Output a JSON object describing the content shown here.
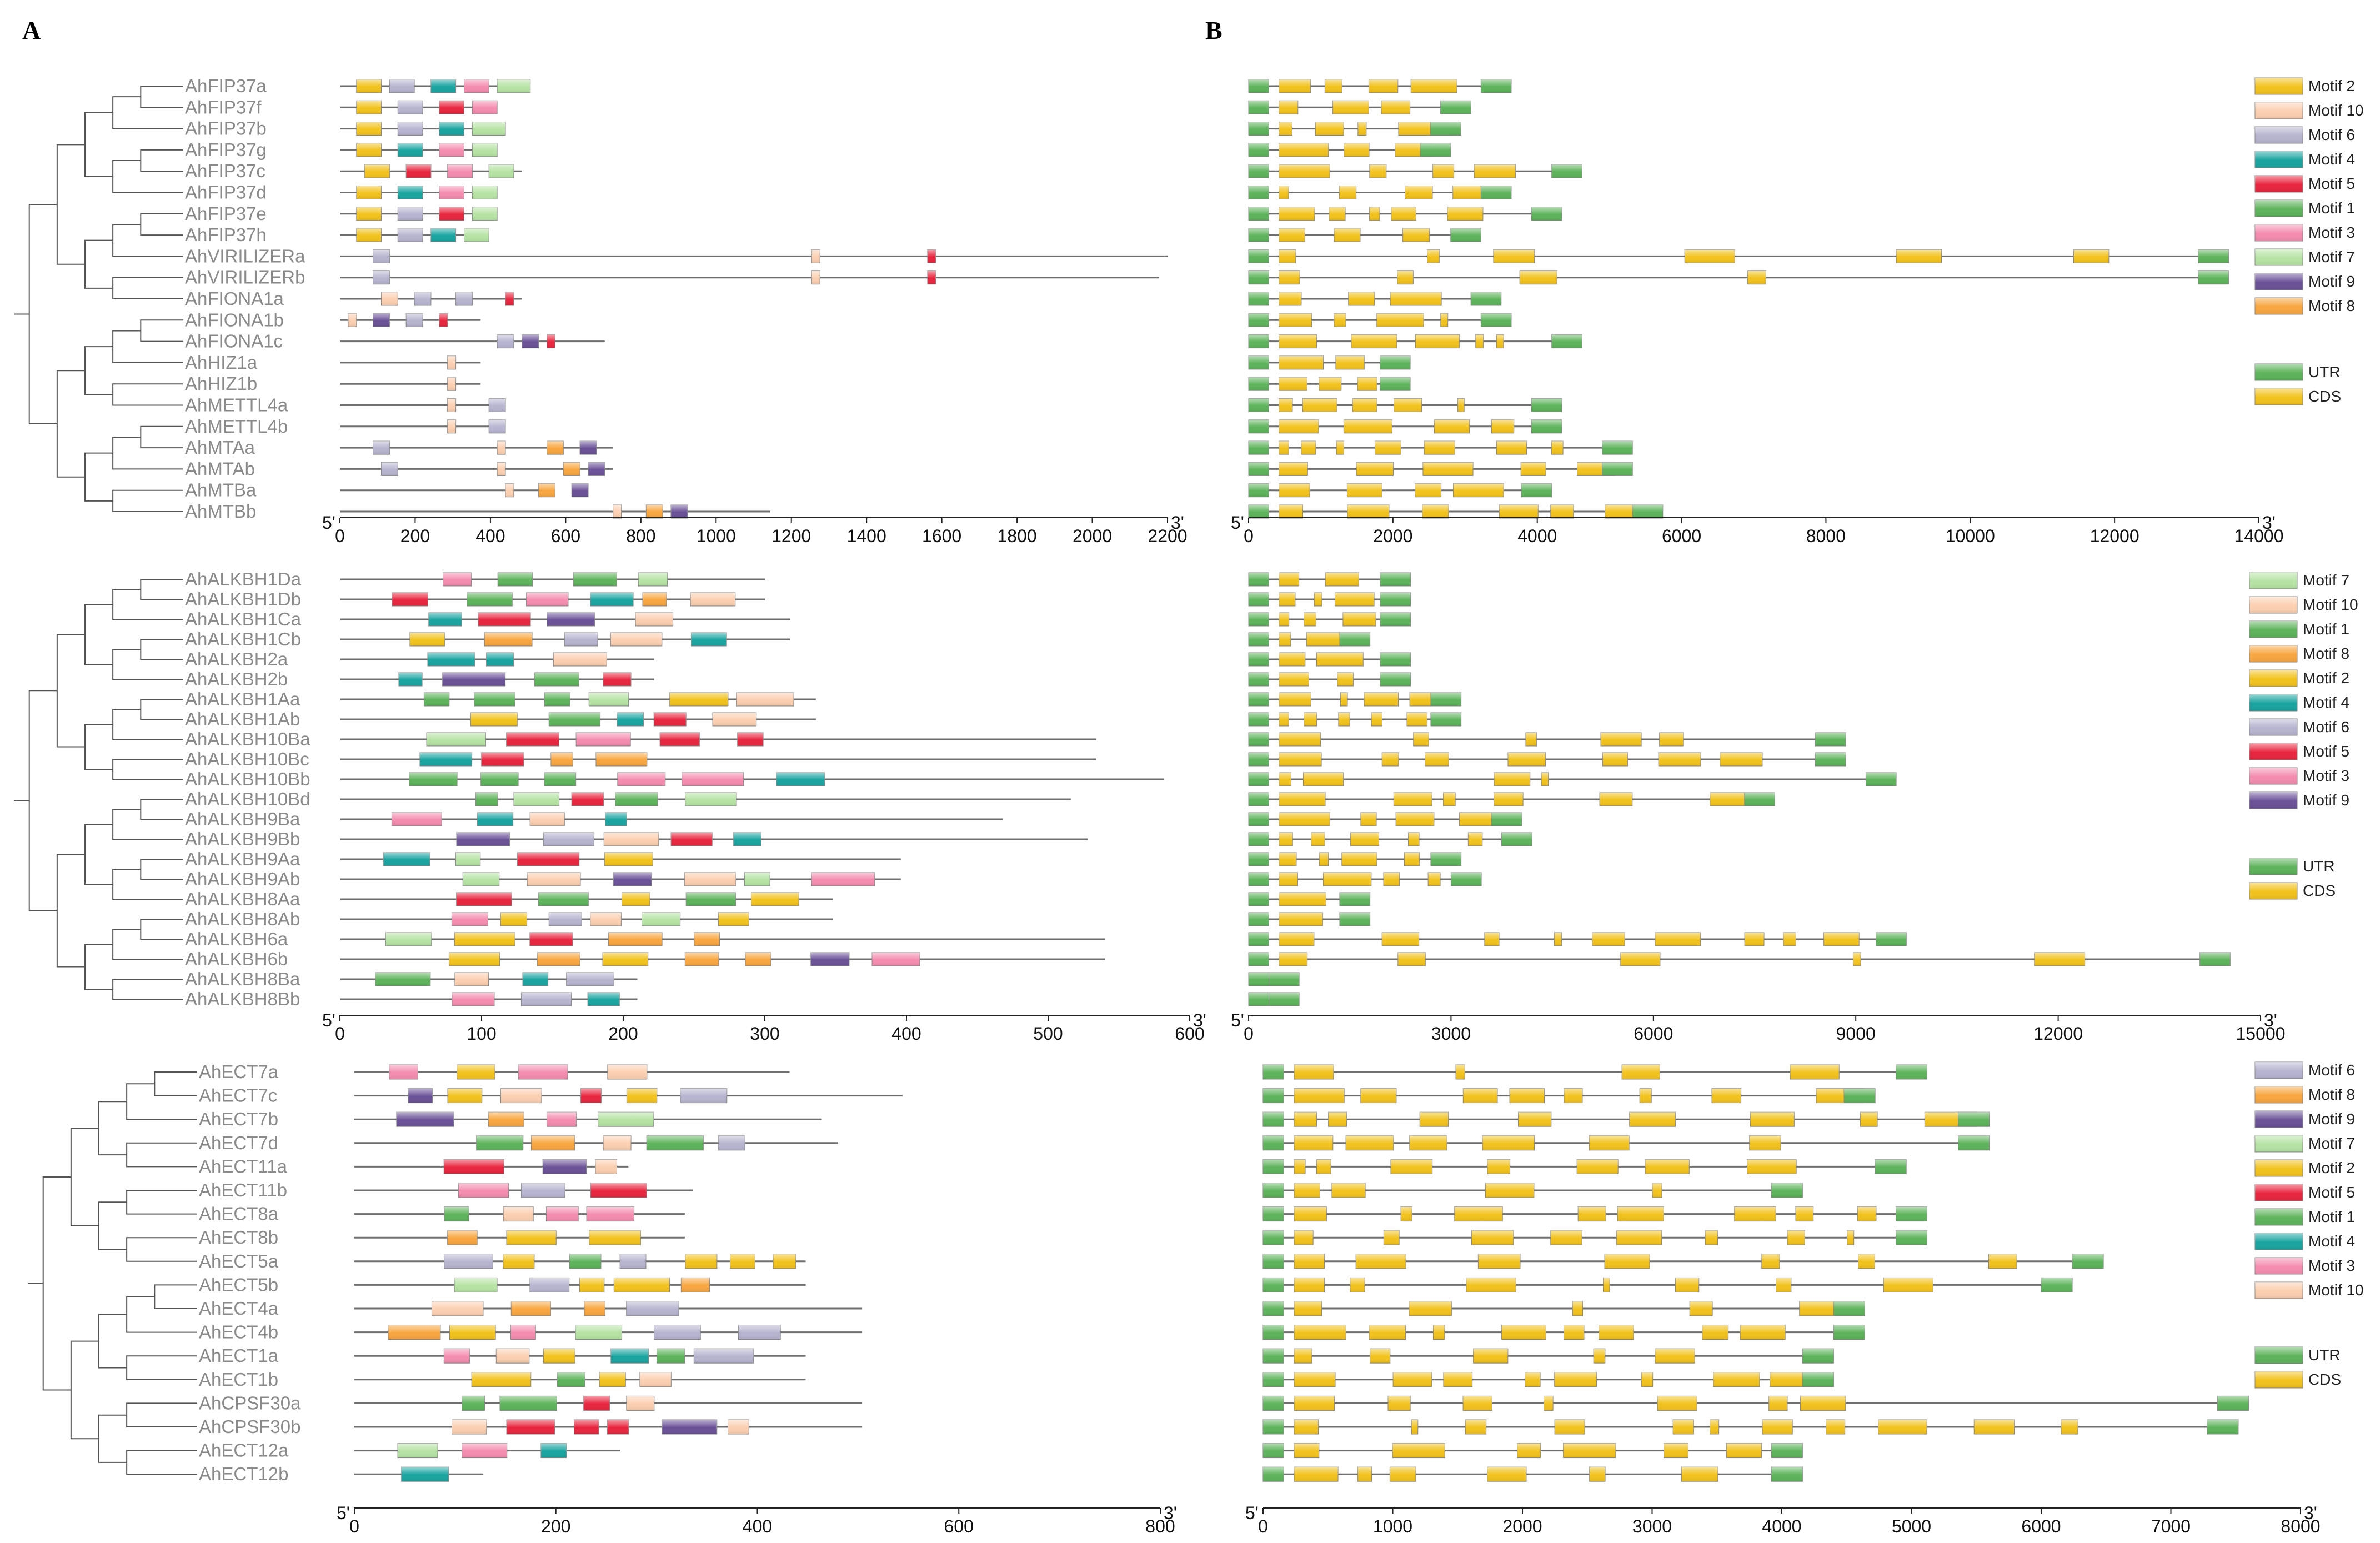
{
  "panel_labels": [
    "A",
    "B"
  ],
  "colors": {
    "Motif 1": "#5db35a",
    "Motif 2": "#f2c21c",
    "Motif 3": "#f48cb0",
    "Motif 4": "#19a4a0",
    "Motif 5": "#e8253e",
    "Motif 6": "#b6b4cf",
    "Motif 7": "#b6e3a4",
    "Motif 8": "#f8a640",
    "Motif 9": "#6a5197",
    "Motif 10": "#fbcfb0",
    "UTR": "#5db35a",
    "CDS": "#f2c21c",
    "line": "#6f6f6f",
    "label": "#8a8a8a"
  },
  "blocks": [
    {
      "id": "b1",
      "genes": [
        "AhFIP37a",
        "AhFIP37f",
        "AhFIP37b",
        "AhFIP37g",
        "AhFIP37c",
        "AhFIP37d",
        "AhFIP37e",
        "AhFIP37h",
        "AhVIRILIZERa",
        "AhVIRILIZERb",
        "AhFIONA1a",
        "AhFIONA1b",
        "AhFIONA1c",
        "AhHIZ1a",
        "AhHIZ1b",
        "AhMETTL4a",
        "AhMETTL4b",
        "AhMTAa",
        "AhMTAb",
        "AhMTBa",
        "AhMTBb"
      ],
      "motif_axis": {
        "start": "5'",
        "end": "3'",
        "min": 0,
        "max": 2200,
        "ticks": [
          0,
          200,
          400,
          600,
          800,
          1000,
          1200,
          1400,
          1600,
          1800,
          2000,
          2200
        ]
      },
      "gene_axis": {
        "start": "5'",
        "end": "3'",
        "min": 0,
        "max": 14000,
        "ticks": [
          0,
          2000,
          4000,
          6000,
          8000,
          10000,
          12000,
          14000
        ]
      },
      "motif_legend": [
        "Motif 2",
        "Motif 10",
        "Motif 6",
        "Motif 4",
        "Motif 5",
        "Motif 1",
        "Motif 3",
        "Motif 7",
        "Motif 9",
        "Motif 8"
      ],
      "structure_legend": [
        "UTR",
        "CDS"
      ]
    },
    {
      "id": "b2",
      "genes": [
        "AhALKBH1Da",
        "AhALKBH1Db",
        "AhALKBH1Ca",
        "AhALKBH1Cb",
        "AhALKBH2a",
        "AhALKBH2b",
        "AhALKBH1Aa",
        "AhALKBH1Ab",
        "AhALKBH10Ba",
        "AhALKBH10Bc",
        "AhALKBH10Bb",
        "AhALKBH10Bd",
        "AhALKBH9Ba",
        "AhALKBH9Bb",
        "AhALKBH9Aa",
        "AhALKBH9Ab",
        "AhALKBH8Aa",
        "AhALKBH8Ab",
        "AhALKBH6a",
        "AhALKBH6b",
        "AhALKBH8Ba",
        "AhALKBH8Bb"
      ],
      "motif_axis": {
        "start": "5'",
        "end": "3'",
        "min": 0,
        "max": 600,
        "ticks": [
          0,
          100,
          200,
          300,
          400,
          500,
          600
        ]
      },
      "gene_axis": {
        "start": "5'",
        "end": "3'",
        "min": 0,
        "max": 15000,
        "ticks": [
          0,
          3000,
          6000,
          9000,
          12000,
          15000
        ]
      },
      "motif_legend": [
        "Motif 7",
        "Motif 10",
        "Motif 1",
        "Motif 8",
        "Motif 2",
        "Motif 4",
        "Motif 6",
        "Motif 5",
        "Motif 3",
        "Motif 9"
      ],
      "structure_legend": [
        "UTR",
        "CDS"
      ]
    },
    {
      "id": "b3",
      "genes": [
        "AhECT7a",
        "AhECT7c",
        "AhECT7b",
        "AhECT7d",
        "AhECT11a",
        "AhECT11b",
        "AhECT8a",
        "AhECT8b",
        "AhECT5a",
        "AhECT5b",
        "AhECT4a",
        "AhECT4b",
        "AhECT1a",
        "AhECT1b",
        "AhCPSF30a",
        "AhCPSF30b",
        "AhECT12a",
        "AhECT12b"
      ],
      "motif_axis": {
        "start": "5'",
        "end": "3'",
        "min": 0,
        "max": 800,
        "ticks": [
          0,
          200,
          400,
          600,
          800
        ]
      },
      "gene_axis": {
        "start": "5'",
        "end": "3'",
        "min": 0,
        "max": 8000,
        "ticks": [
          0,
          1000,
          2000,
          3000,
          4000,
          5000,
          6000,
          7000,
          8000
        ]
      },
      "motif_legend": [
        "Motif 6",
        "Motif 8",
        "Motif 9",
        "Motif 7",
        "Motif 2",
        "Motif 5",
        "Motif 1",
        "Motif 4",
        "Motif 3",
        "Motif 10"
      ],
      "structure_legend": [
        "UTR",
        "CDS"
      ]
    }
  ]
}
